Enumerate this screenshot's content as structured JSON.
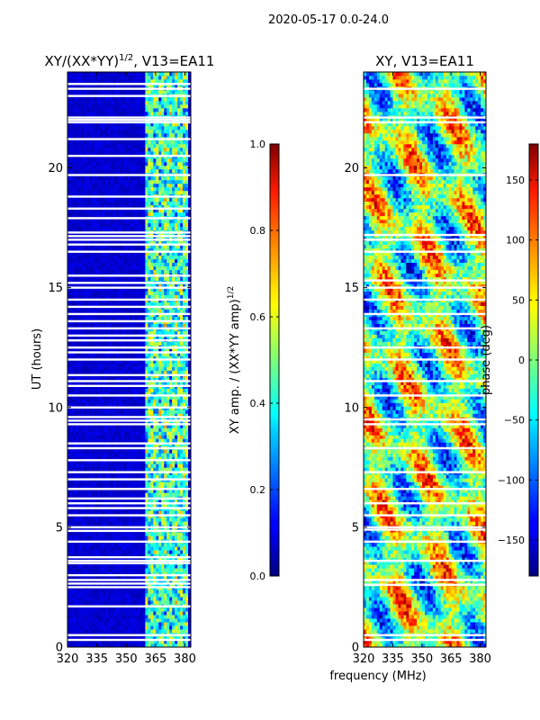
{
  "figure": {
    "suptitle": "2020-05-17 0.0-24.0",
    "shared_xlabel": "frequency (MHz)"
  },
  "chart_data": [
    {
      "type": "heatmap",
      "title_main": "XY/(XX*YY)",
      "title_sup": "1/2",
      "title_tail": ", V13=EA11",
      "ylabel": "UT (hours)",
      "xlim": [
        320,
        383
      ],
      "ylim": [
        0,
        24
      ],
      "xticks": [
        320,
        335,
        350,
        365,
        380
      ],
      "yticks": [
        0,
        5,
        10,
        15,
        20
      ],
      "colormap": "jet",
      "background_value": 0.05,
      "signal_channel_band_mhz": [
        360,
        382
      ],
      "flagged_hours": [
        0.3,
        0.5,
        1.7,
        2.5,
        2.65,
        2.8,
        3.0,
        3.5,
        3.6,
        3.75,
        4.4,
        4.85,
        5.0,
        5.5,
        5.8,
        6.0,
        6.2,
        6.6,
        7.0,
        7.3,
        7.8,
        8.3,
        8.5,
        9.3,
        9.45,
        9.6,
        10.0,
        10.5,
        10.9,
        11.1,
        11.35,
        12.0,
        12.3,
        12.5,
        12.8,
        13.0,
        13.3,
        13.6,
        13.9,
        14.2,
        14.5,
        15.0,
        15.2,
        15.5,
        16.5,
        16.8,
        17.0,
        17.15,
        17.3,
        17.9,
        18.3,
        18.8,
        19.7,
        20.5,
        21.2,
        21.9,
        22.0,
        22.1,
        23.0,
        23.3,
        23.5
      ],
      "colorbar": {
        "label_main": "XY amp. / (XX*YY amp)",
        "label_sup": "1/2",
        "range": [
          0.0,
          1.0
        ],
        "ticks": [
          "0.0",
          "0.2",
          "0.4",
          "0.6",
          "0.8",
          "1.0"
        ],
        "tick_values": [
          0.0,
          0.2,
          0.4,
          0.6,
          0.8,
          1.0
        ]
      }
    },
    {
      "type": "heatmap",
      "title": "XY, V13=EA11",
      "xlim": [
        320,
        383
      ],
      "ylim": [
        0,
        24
      ],
      "xticks": [
        320,
        335,
        350,
        365,
        380
      ],
      "yticks": [
        0,
        5,
        10,
        15,
        20
      ],
      "colormap": "jet",
      "flagged_hours": [
        0.3,
        0.5,
        2.6,
        2.8,
        3.6,
        4.4,
        4.9,
        5.0,
        5.5,
        6.0,
        6.6,
        7.3,
        8.3,
        9.3,
        9.5,
        10.5,
        11.1,
        12.0,
        12.5,
        13.3,
        13.9,
        14.5,
        15.0,
        15.3,
        16.5,
        17.0,
        17.2,
        19.7,
        21.9,
        22.1,
        23.3
      ],
      "colorbar": {
        "label": "phase (deg)",
        "range": [
          -180,
          180
        ],
        "ticks": [
          "−150",
          "−100",
          "−50",
          "0",
          "50",
          "100",
          "150"
        ],
        "tick_values": [
          -150,
          -100,
          -50,
          0,
          50,
          100,
          150
        ]
      }
    }
  ]
}
